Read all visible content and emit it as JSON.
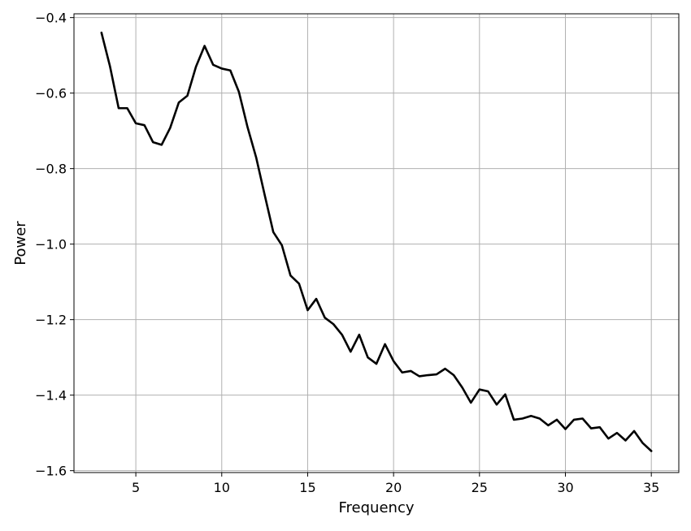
{
  "chart_data": {
    "type": "line",
    "title": "",
    "xlabel": "Frequency",
    "ylabel": "Power",
    "xlim": [
      1.4,
      36.6
    ],
    "ylim": [
      -1.605,
      -0.39
    ],
    "xticks": [
      5,
      10,
      15,
      20,
      25,
      30,
      35
    ],
    "xtick_labels": [
      "5",
      "10",
      "15",
      "20",
      "25",
      "30",
      "35"
    ],
    "yticks": [
      -0.4,
      -0.6,
      -0.8,
      -1.0,
      -1.2,
      -1.4,
      -1.6
    ],
    "ytick_labels": [
      "−0.4",
      "−0.6",
      "−0.8",
      "−1.0",
      "−1.2",
      "−1.4",
      "−1.6"
    ],
    "grid": true,
    "series": [
      {
        "color": "#000000",
        "x": [
          3,
          3.5,
          4,
          4.5,
          5,
          5.5,
          6,
          6.5,
          7,
          7.5,
          8,
          8.5,
          9,
          9.5,
          10,
          10.5,
          11,
          11.5,
          12,
          12.5,
          13,
          13.5,
          14,
          14.5,
          15,
          15.5,
          16,
          16.5,
          17,
          17.5,
          18,
          18.5,
          19,
          19.5,
          20,
          20.5,
          21,
          21.5,
          22,
          22.5,
          23,
          23.5,
          24,
          24.5,
          25,
          25.5,
          26,
          26.5,
          27,
          27.5,
          28,
          28.5,
          29,
          29.5,
          30,
          30.5,
          31,
          31.5,
          32,
          32.5,
          33,
          33.5,
          34,
          34.5,
          35
        ],
        "y": [
          -0.44,
          -0.53,
          -0.64,
          -0.64,
          -0.68,
          -0.685,
          -0.73,
          -0.737,
          -0.692,
          -0.625,
          -0.607,
          -0.53,
          -0.475,
          -0.525,
          -0.535,
          -0.54,
          -0.597,
          -0.69,
          -0.77,
          -0.87,
          -0.968,
          -1.003,
          -1.083,
          -1.105,
          -1.175,
          -1.145,
          -1.195,
          -1.212,
          -1.24,
          -1.285,
          -1.24,
          -1.3,
          -1.317,
          -1.265,
          -1.31,
          -1.34,
          -1.336,
          -1.35,
          -1.347,
          -1.345,
          -1.33,
          -1.347,
          -1.38,
          -1.42,
          -1.385,
          -1.39,
          -1.425,
          -1.398,
          -1.465,
          -1.462,
          -1.455,
          -1.462,
          -1.48,
          -1.465,
          -1.49,
          -1.465,
          -1.462,
          -1.488,
          -1.485,
          -1.515,
          -1.5,
          -1.52,
          -1.495,
          -1.527,
          -1.548
        ]
      }
    ]
  }
}
